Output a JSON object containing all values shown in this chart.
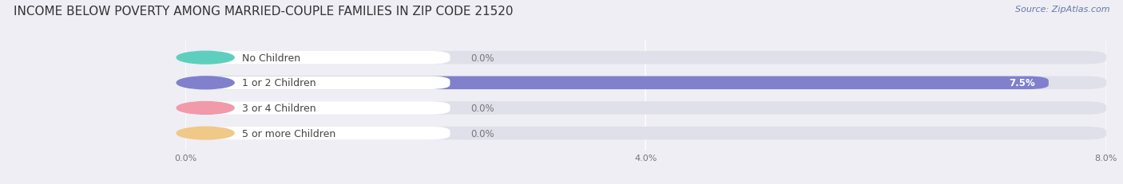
{
  "title": "INCOME BELOW POVERTY AMONG MARRIED-COUPLE FAMILIES IN ZIP CODE 21520",
  "source": "Source: ZipAtlas.com",
  "categories": [
    "No Children",
    "1 or 2 Children",
    "3 or 4 Children",
    "5 or more Children"
  ],
  "values": [
    0.0,
    7.5,
    0.0,
    0.0
  ],
  "bar_colors": [
    "#5ecfbe",
    "#8080cc",
    "#f09aaa",
    "#f0c888"
  ],
  "xlim_max": 8.0,
  "xtick_positions": [
    0.0,
    4.0,
    8.0
  ],
  "xtick_labels": [
    "0.0%",
    "4.0%",
    "8.0%"
  ],
  "bg_color": "#eeeef4",
  "bar_bg_color": "#e0e0ea",
  "title_fontsize": 11,
  "label_fontsize": 9,
  "value_fontsize": 8.5,
  "source_fontsize": 8
}
